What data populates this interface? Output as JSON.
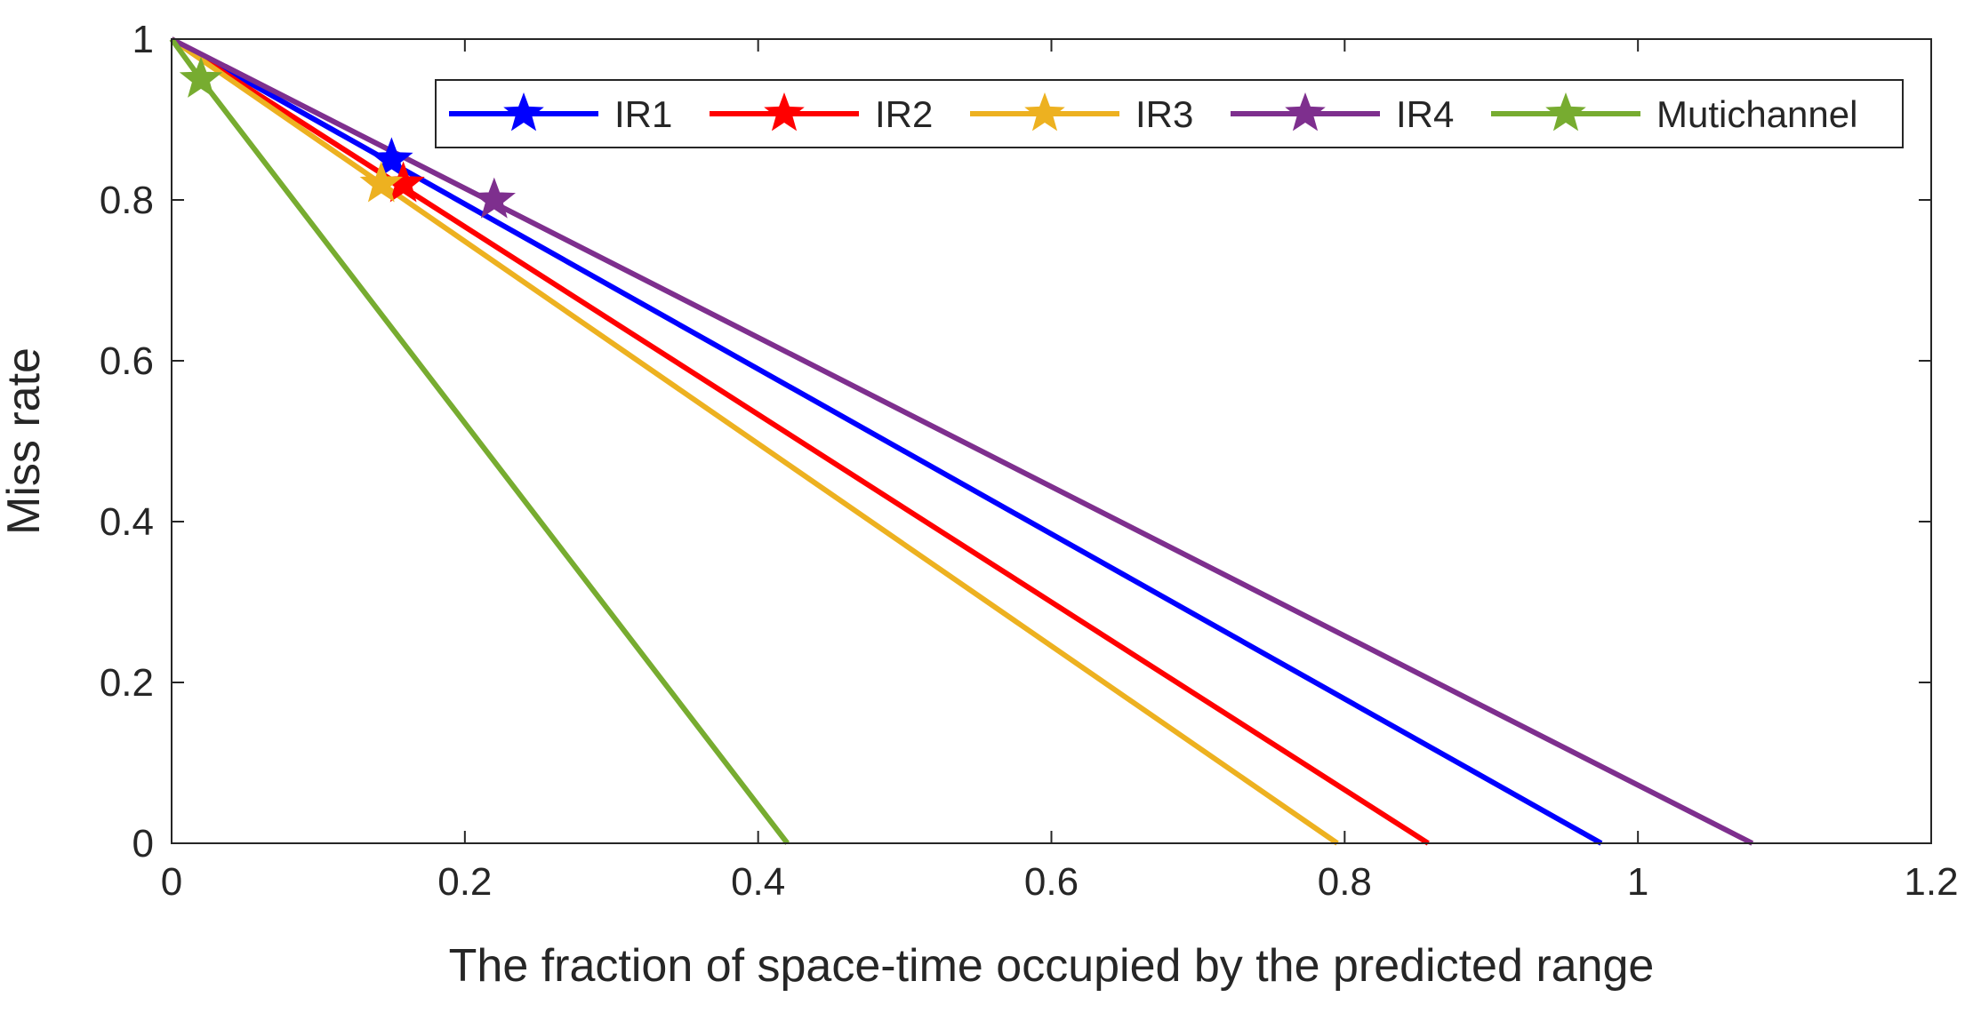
{
  "chart_data": {
    "type": "line",
    "title": "",
    "xlabel": "The fraction of space-time occupied by the predicted range",
    "ylabel": "Miss rate",
    "xlim": [
      0,
      1.2
    ],
    "ylim": [
      0,
      1
    ],
    "xticks": [
      0,
      0.2,
      0.4,
      0.6,
      0.8,
      1,
      1.2
    ],
    "xtick_labels": [
      "0",
      "0.2",
      "0.4",
      "0.6",
      "0.8",
      "1",
      "1.2"
    ],
    "yticks": [
      0,
      0.2,
      0.4,
      0.6,
      0.8,
      1
    ],
    "ytick_labels": [
      "0",
      "0.2",
      "0.4",
      "0.6",
      "0.8",
      "1"
    ],
    "grid": false,
    "legend_position": "top-right",
    "legend_orientation": "horizontal",
    "series": [
      {
        "name": "IR1",
        "color": "#0000ff",
        "marker": "star",
        "line": [
          [
            0,
            1
          ],
          [
            0.975,
            0
          ]
        ],
        "marker_point": [
          0.15,
          0.85
        ]
      },
      {
        "name": "IR2",
        "color": "#ff0000",
        "marker": "star",
        "line": [
          [
            0,
            1
          ],
          [
            0.857,
            0
          ]
        ],
        "marker_point": [
          0.158,
          0.82
        ]
      },
      {
        "name": "IR3",
        "color": "#edb120",
        "marker": "star",
        "line": [
          [
            0,
            1
          ],
          [
            0.795,
            0
          ]
        ],
        "marker_point": [
          0.143,
          0.82
        ]
      },
      {
        "name": "IR4",
        "color": "#7e2f8e",
        "marker": "star",
        "line": [
          [
            0,
            1
          ],
          [
            1.078,
            0
          ]
        ],
        "marker_point": [
          0.22,
          0.8
        ]
      },
      {
        "name": "Mutichannel",
        "color": "#77ac30",
        "marker": "star",
        "line": [
          [
            0,
            1
          ],
          [
            0.02,
            0.95
          ],
          [
            0.42,
            0
          ]
        ],
        "marker_point": [
          0.02,
          0.95
        ]
      }
    ]
  }
}
